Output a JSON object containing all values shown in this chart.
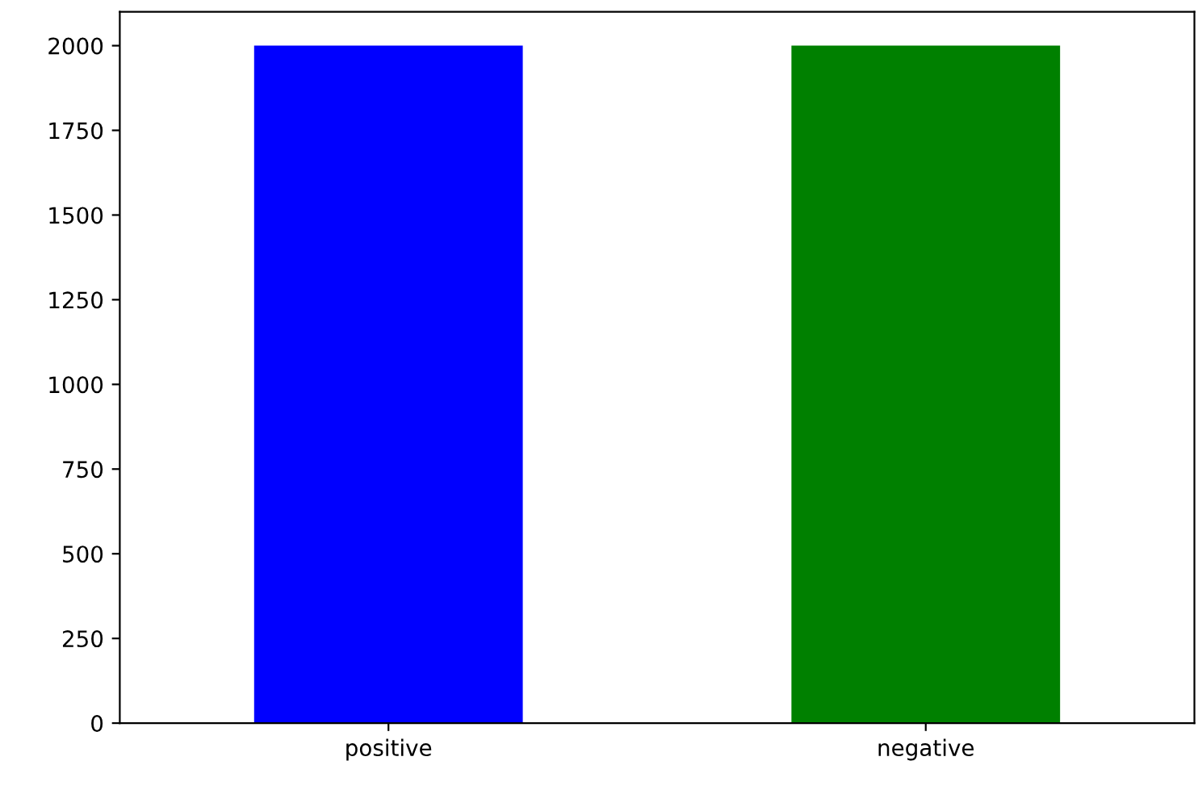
{
  "chart_data": {
    "type": "bar",
    "categories": [
      "positive",
      "negative"
    ],
    "values": [
      2000,
      2000
    ],
    "colors": [
      "#0000ff",
      "#008000"
    ],
    "ylim": [
      0,
      2100
    ],
    "yticks": [
      0,
      250,
      500,
      750,
      1000,
      1250,
      1500,
      1750,
      2000
    ],
    "grid": false
  }
}
